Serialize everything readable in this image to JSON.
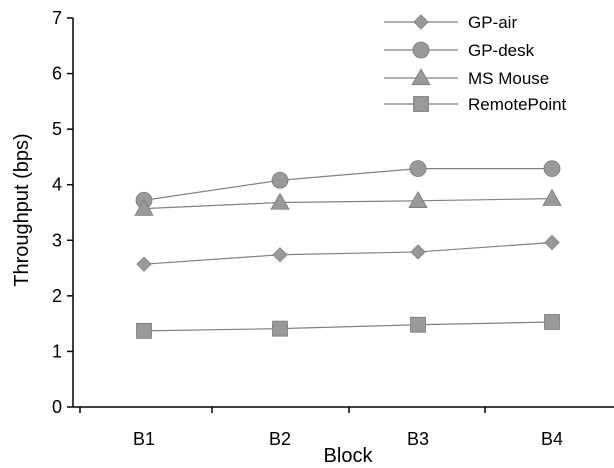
{
  "chart_data": {
    "type": "line",
    "title": "",
    "xlabel": "Block",
    "ylabel": "Throughput (bps)",
    "categories": [
      "B1",
      "B2",
      "B3",
      "B4"
    ],
    "ylim": [
      0,
      7
    ],
    "yticks": [
      "0",
      "1",
      "2",
      "3",
      "4",
      "5",
      "6",
      "7"
    ],
    "grid": false,
    "legend": "top-right",
    "marker_color": "#999999",
    "line_color": "#808080",
    "series": [
      {
        "name": "GP-air",
        "marker": "diamond",
        "values": [
          2.57,
          2.74,
          2.79,
          2.96
        ]
      },
      {
        "name": "GP-desk",
        "marker": "circle",
        "values": [
          3.72,
          4.08,
          4.29,
          4.29
        ]
      },
      {
        "name": "MS Mouse",
        "marker": "triangle",
        "values": [
          3.57,
          3.68,
          3.71,
          3.75
        ]
      },
      {
        "name": "RemotePoint",
        "marker": "square",
        "values": [
          1.37,
          1.41,
          1.48,
          1.53
        ]
      }
    ]
  }
}
